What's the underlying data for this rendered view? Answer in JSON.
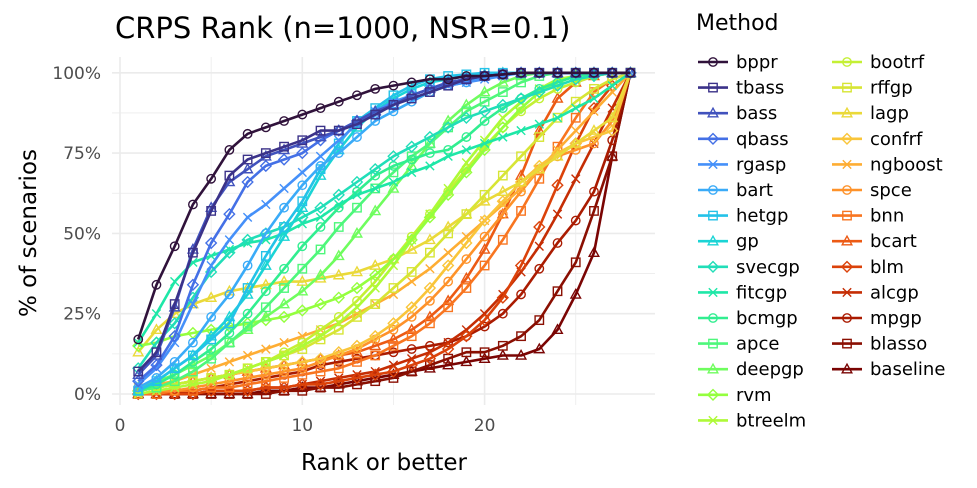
{
  "chart_data": {
    "type": "line",
    "title": "CRPS Rank (n=1000, NSR=0.1)",
    "xlabel": "Rank or better",
    "ylabel": "% of scenarios",
    "xlim": [
      0,
      29
    ],
    "ylim": [
      0,
      100
    ],
    "x_ticks": [
      0,
      10,
      20
    ],
    "y_ticks": [
      "0%",
      "25%",
      "50%",
      "75%",
      "100%"
    ],
    "grid": true,
    "legend": {
      "title": "Method",
      "position": "right",
      "columns": 2
    },
    "x": [
      1,
      2,
      3,
      4,
      5,
      6,
      7,
      8,
      9,
      10,
      11,
      12,
      13,
      14,
      15,
      16,
      17,
      18,
      19,
      20,
      21,
      22,
      23,
      24,
      25,
      26,
      27,
      28
    ],
    "series": [
      {
        "name": "bppr",
        "color": "#30123b",
        "marker": "circle",
        "values": [
          17,
          34,
          46,
          59,
          67,
          76,
          81,
          83,
          85,
          87,
          89,
          91,
          93,
          95,
          96,
          97,
          98,
          98,
          99,
          99,
          99.5,
          100,
          100,
          100,
          100,
          100,
          100,
          100
        ]
      },
      {
        "name": "tbass",
        "color": "#3b3289",
        "marker": "square",
        "values": [
          7,
          13,
          28,
          44,
          57,
          68,
          73,
          75,
          77,
          79,
          82,
          82,
          84,
          87,
          90,
          92,
          94,
          96,
          98,
          99,
          99.5,
          100,
          100,
          100,
          100,
          100,
          100,
          100
        ]
      },
      {
        "name": "bass",
        "color": "#4152bd",
        "marker": "triangle",
        "values": [
          6,
          12,
          27,
          45,
          58,
          66,
          70,
          74,
          76,
          78,
          80,
          82,
          85,
          88,
          90,
          93,
          95,
          97,
          98,
          99,
          99.5,
          100,
          100,
          100,
          100,
          100,
          100,
          100
        ]
      },
      {
        "name": "qbass",
        "color": "#4470e6",
        "marker": "diamond",
        "values": [
          4,
          9,
          18,
          34,
          47,
          56,
          66,
          71,
          73,
          75,
          79,
          82,
          85,
          87,
          90,
          93,
          95,
          97,
          98,
          99,
          99.5,
          100,
          100,
          100,
          100,
          100,
          100,
          100
        ]
      },
      {
        "name": "rgasp",
        "color": "#4590f9",
        "marker": "x",
        "values": [
          3,
          8,
          16,
          28,
          40,
          48,
          55,
          59,
          64,
          69,
          74,
          79,
          84,
          88,
          91,
          93,
          95,
          96,
          97,
          98,
          99,
          100,
          100,
          100,
          100,
          100,
          100,
          100
        ]
      },
      {
        "name": "bart",
        "color": "#3aabf8",
        "marker": "circle",
        "values": [
          2,
          5,
          10,
          16,
          24,
          31,
          40,
          50,
          58,
          65,
          71,
          75,
          80,
          85,
          88,
          91,
          94,
          96,
          97,
          99,
          99.5,
          100,
          100,
          100,
          100,
          100,
          100,
          100
        ]
      },
      {
        "name": "hetgp",
        "color": "#24c2e8",
        "marker": "square",
        "values": [
          1,
          4,
          8,
          12,
          17,
          22,
          33,
          43,
          52,
          60,
          70,
          78,
          85,
          89,
          93,
          96,
          98,
          99,
          99.5,
          100,
          100,
          100,
          100,
          100,
          100,
          100,
          100,
          100
        ]
      },
      {
        "name": "gp",
        "color": "#1ad4d5",
        "marker": "triangle",
        "values": [
          1,
          4,
          8,
          12,
          18,
          24,
          31,
          40,
          49,
          58,
          68,
          76,
          83,
          88,
          92,
          95,
          97,
          98,
          99,
          99.5,
          100,
          100,
          100,
          100,
          100,
          100,
          100,
          100
        ]
      },
      {
        "name": "svecgp",
        "color": "#21deb8",
        "marker": "diamond",
        "values": [
          8,
          16,
          22,
          30,
          38,
          44,
          48,
          50,
          52,
          55,
          58,
          62,
          66,
          70,
          74,
          77,
          80,
          83,
          86,
          88,
          90,
          92,
          94,
          96,
          98,
          99,
          100,
          100
        ]
      },
      {
        "name": "fitcgp",
        "color": "#1ee7a7",
        "marker": "x",
        "values": [
          16,
          25,
          35,
          41,
          43,
          45,
          47,
          48,
          50,
          53,
          55,
          59,
          62,
          64,
          66,
          69,
          71,
          74,
          76,
          78,
          80,
          82,
          84,
          86,
          89,
          92,
          96,
          100
        ]
      },
      {
        "name": "bcmgp",
        "color": "#31ee90",
        "marker": "circle",
        "values": [
          1,
          3,
          6,
          10,
          14,
          19,
          25,
          32,
          39,
          46,
          52,
          58,
          63,
          68,
          71,
          73,
          75,
          76,
          80,
          85,
          89,
          92,
          95,
          97,
          99,
          99.5,
          100,
          100
        ]
      },
      {
        "name": "apce",
        "color": "#4ef77b",
        "marker": "square",
        "values": [
          1,
          2,
          4,
          7,
          11,
          16,
          21,
          27,
          33,
          39,
          45,
          52,
          58,
          64,
          69,
          74,
          78,
          83,
          88,
          91,
          94,
          97,
          99,
          100,
          100,
          100,
          100,
          100
        ]
      },
      {
        "name": "deepgp",
        "color": "#6ffd5e",
        "marker": "triangle",
        "values": [
          2,
          4,
          6,
          9,
          12,
          16,
          20,
          24,
          28,
          32,
          37,
          43,
          50,
          57,
          64,
          71,
          78,
          85,
          90,
          94,
          97,
          99,
          100,
          100,
          100,
          100,
          100,
          100
        ]
      },
      {
        "name": "rvm",
        "color": "#94ff3e",
        "marker": "diamond",
        "values": [
          15,
          16,
          18,
          19,
          20,
          21,
          22,
          23,
          24,
          26,
          28,
          30,
          33,
          37,
          42,
          48,
          55,
          62,
          69,
          76,
          83,
          89,
          94,
          97,
          99,
          100,
          100,
          100
        ]
      },
      {
        "name": "btreelm",
        "color": "#aefa37",
        "marker": "x",
        "values": [
          0,
          1,
          2,
          3,
          4,
          6,
          8,
          10,
          12,
          15,
          18,
          22,
          27,
          33,
          40,
          48,
          56,
          64,
          72,
          79,
          86,
          91,
          95,
          98,
          99,
          100,
          100,
          100
        ]
      },
      {
        "name": "bootrf",
        "color": "#c4f034",
        "marker": "circle",
        "values": [
          1,
          2,
          3,
          4,
          5,
          6,
          8,
          10,
          13,
          16,
          20,
          24,
          29,
          35,
          42,
          49,
          56,
          63,
          70,
          77,
          83,
          88,
          92,
          95,
          97,
          99,
          100,
          100
        ]
      },
      {
        "name": "rffgp",
        "color": "#d7e535",
        "marker": "square",
        "values": [
          1,
          2,
          3,
          4,
          5,
          6,
          8,
          10,
          12,
          14,
          17,
          20,
          24,
          28,
          33,
          38,
          44,
          50,
          56,
          62,
          68,
          74,
          80,
          86,
          91,
          95,
          98,
          100
        ]
      },
      {
        "name": "lagp",
        "color": "#ead939",
        "marker": "triangle",
        "values": [
          13,
          20,
          25,
          28,
          30,
          32,
          33,
          34,
          35,
          35,
          36,
          37,
          38,
          40,
          42,
          45,
          48,
          52,
          56,
          60,
          63,
          66,
          70,
          74,
          78,
          82,
          86,
          100
        ]
      },
      {
        "name": "confrf",
        "color": "#f9c53a",
        "marker": "diamond",
        "values": [
          1,
          2,
          3,
          4,
          5,
          6,
          7,
          8,
          9,
          10,
          11,
          13,
          15,
          18,
          22,
          27,
          33,
          40,
          47,
          54,
          60,
          66,
          71,
          75,
          78,
          80,
          82,
          100
        ]
      },
      {
        "name": "ngboost",
        "color": "#fead33",
        "marker": "x",
        "values": [
          2,
          3,
          4,
          6,
          8,
          10,
          12,
          14,
          16,
          18,
          20,
          22,
          25,
          28,
          31,
          35,
          39,
          44,
          49,
          54,
          59,
          64,
          70,
          76,
          82,
          88,
          94,
          100
        ]
      },
      {
        "name": "spce",
        "color": "#fe922a",
        "marker": "circle",
        "values": [
          0,
          1,
          1,
          2,
          3,
          4,
          5,
          6,
          7,
          8,
          10,
          12,
          14,
          17,
          20,
          24,
          29,
          35,
          42,
          49,
          56,
          63,
          70,
          74,
          76,
          78,
          85,
          100
        ]
      },
      {
        "name": "bnn",
        "color": "#f87520",
        "marker": "square",
        "values": [
          0,
          0,
          1,
          1,
          2,
          2,
          3,
          4,
          5,
          6,
          7,
          8,
          10,
          12,
          15,
          18,
          22,
          27,
          33,
          40,
          48,
          57,
          67,
          77,
          86,
          94,
          98,
          100
        ]
      },
      {
        "name": "bcart",
        "color": "#ec5a14",
        "marker": "triangle",
        "values": [
          1,
          2,
          3,
          4,
          5,
          6,
          7,
          8,
          9,
          10,
          11,
          12,
          13,
          15,
          17,
          20,
          24,
          29,
          36,
          45,
          56,
          68,
          82,
          92,
          97,
          99,
          100,
          100
        ]
      },
      {
        "name": "blm",
        "color": "#db420a",
        "marker": "diamond",
        "values": [
          0,
          0,
          0,
          0,
          1,
          1,
          1,
          2,
          2,
          3,
          3,
          4,
          5,
          6,
          7,
          9,
          11,
          14,
          18,
          23,
          30,
          40,
          52,
          65,
          78,
          89,
          96,
          100
        ]
      },
      {
        "name": "alcgp",
        "color": "#c52d04",
        "marker": "x",
        "values": [
          0,
          0,
          0,
          0,
          1,
          1,
          1,
          2,
          2,
          3,
          4,
          5,
          6,
          7,
          9,
          11,
          13,
          16,
          20,
          25,
          31,
          38,
          46,
          56,
          67,
          78,
          89,
          100
        ]
      },
      {
        "name": "mpgp",
        "color": "#aa1b01",
        "marker": "circle",
        "values": [
          0,
          0,
          0,
          1,
          2,
          3,
          4,
          5,
          6,
          7,
          9,
          10,
          11,
          12,
          13,
          14,
          15,
          16,
          18,
          21,
          25,
          31,
          39,
          47,
          54,
          63,
          79,
          100
        ]
      },
      {
        "name": "blasso",
        "color": "#8a0f02",
        "marker": "square",
        "values": [
          0,
          0,
          0,
          0,
          0,
          0,
          0,
          0,
          1,
          1,
          2,
          2,
          3,
          4,
          5,
          7,
          9,
          11,
          13,
          13,
          15,
          18,
          23,
          32,
          41,
          57,
          74,
          100
        ]
      },
      {
        "name": "baseline",
        "color": "#7a0403",
        "marker": "triangle",
        "values": [
          0,
          0,
          0,
          0,
          0,
          0,
          0,
          1,
          1,
          2,
          2,
          3,
          4,
          5,
          6,
          7,
          8,
          9,
          10,
          11,
          12,
          12,
          14,
          20,
          31,
          44,
          74,
          100
        ]
      }
    ]
  }
}
